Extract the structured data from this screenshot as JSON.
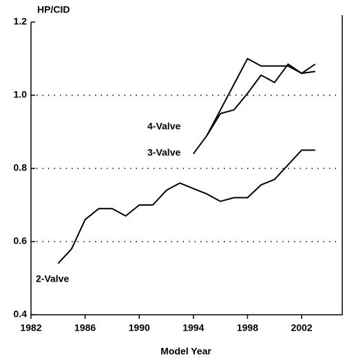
{
  "chart_data": {
    "type": "line",
    "ylabel": "HP/CID",
    "xlabel": "Model Year",
    "xlim": [
      1982,
      2005
    ],
    "xticks": [
      1982,
      1986,
      1990,
      1994,
      1998,
      2002
    ],
    "ylim": [
      0.4,
      1.2
    ],
    "yticks": [
      0.4,
      0.6,
      0.8,
      {
        "value": 1,
        "label": "1.0"
      },
      1.2
    ],
    "grid": true,
    "series": [
      {
        "name": "2-Valve",
        "color": "#000000",
        "x": [
          1984,
          1985,
          1986,
          1987,
          1988,
          1989,
          1990,
          1991,
          1992,
          1993,
          1994,
          1995,
          1996,
          1997,
          1998,
          1999,
          2000,
          2001,
          2002,
          2003
        ],
        "values": [
          0.54,
          0.58,
          0.66,
          0.69,
          0.69,
          0.67,
          0.7,
          0.7,
          0.74,
          0.76,
          0.745,
          0.73,
          0.71,
          0.72,
          0.72,
          0.755,
          0.77,
          0.81,
          0.85,
          0.85
        ]
      },
      {
        "name": "3-Valve",
        "color": "#000000",
        "x": [
          1994,
          1995,
          1996,
          1997,
          1998,
          1999,
          2000,
          2001,
          2002,
          2003
        ],
        "values": [
          0.84,
          0.89,
          0.96,
          1.03,
          1.1,
          1.08,
          1.08,
          1.08,
          1.06,
          1.065
        ]
      },
      {
        "name": "4-Valve",
        "color": "#000000",
        "x": [
          1995,
          1996,
          1997,
          1998,
          1999,
          2000,
          2001,
          2002,
          2003
        ],
        "values": [
          0.89,
          0.95,
          0.96,
          1.005,
          1.055,
          1.035,
          1.085,
          1.06,
          1.085
        ]
      }
    ]
  }
}
